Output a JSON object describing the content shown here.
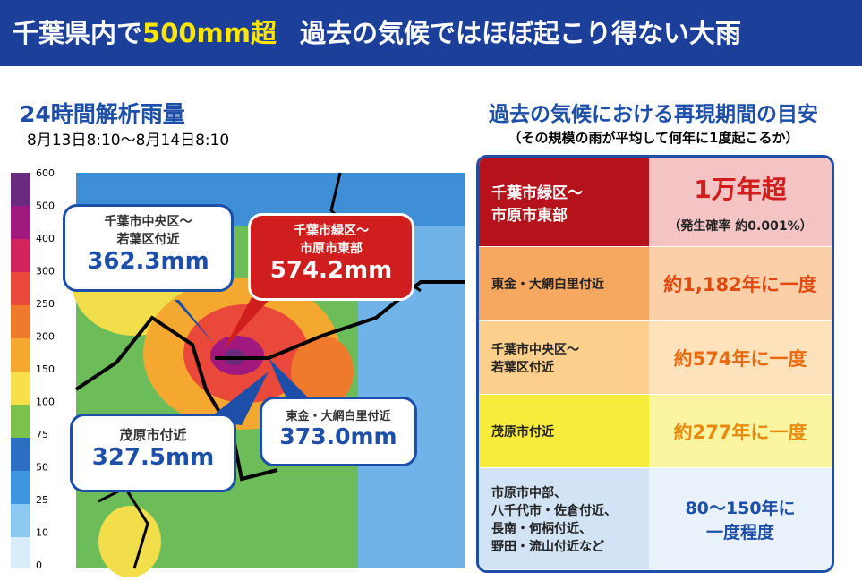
{
  "header": {
    "title": {
      "part1": "千葉県内で",
      "highlight": "500mm超",
      "part2": "過去の気候ではほぼ起こり得ない大雨"
    }
  },
  "map_panel": {
    "title": "24時間解析雨量",
    "subtitle": "8月13日8:10〜8月14日8:10",
    "scale_ticks": [
      600,
      500,
      400,
      300,
      250,
      200,
      150,
      100,
      75,
      50,
      25,
      10,
      0
    ],
    "callouts": [
      {
        "place": "千葉市中央区〜\n若葉区付近",
        "amount": "362.3mm"
      },
      {
        "place": "千葉市緑区〜\n市原市東部",
        "amount": "574.2mm"
      },
      {
        "place": "茂原市付近",
        "amount": "327.5mm"
      },
      {
        "place": "東金・大網白里付近",
        "amount": "373.0mm"
      }
    ]
  },
  "table_panel": {
    "title": "過去の気候における再現期間の目安",
    "subtitle": "（その規模の雨が平均して何年に1度起こるか）",
    "rows": [
      {
        "area": "千葉市緑区〜\n市原市東部",
        "period": "1万年超",
        "note": "（発生確率 約0.001%）"
      },
      {
        "area": "東金・大網白里付近",
        "period": "約1,182年に一度"
      },
      {
        "area": "千葉市中央区〜\n若葉区付近",
        "period": "約574年に一度"
      },
      {
        "area": "茂原市付近",
        "period": "約277年に一度"
      },
      {
        "area": "市原市中部、\n八千代市・佐倉付近、\n長南・何柄付近、\n野田・流山付近など",
        "period": "80〜150年に\n一度程度"
      }
    ]
  }
}
